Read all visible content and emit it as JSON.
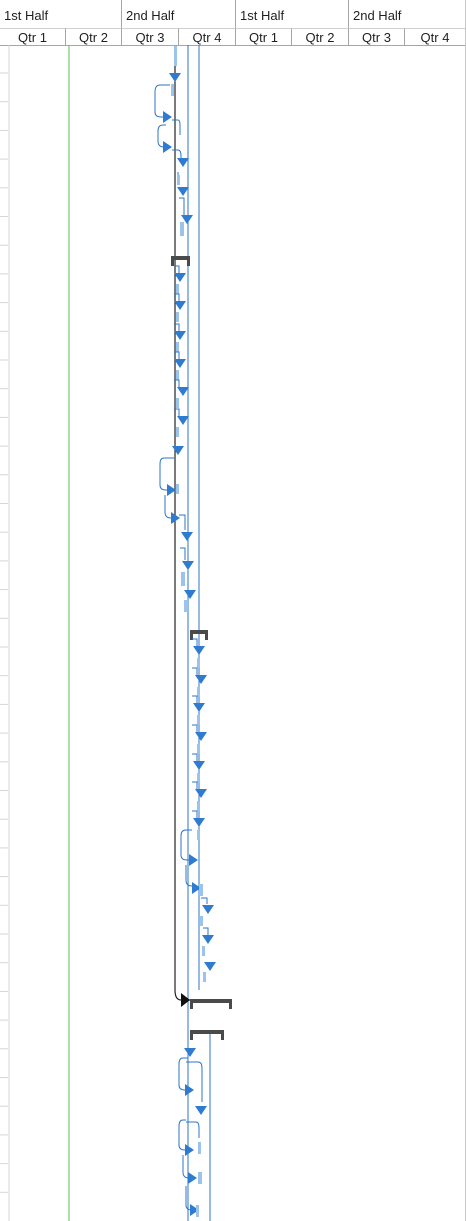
{
  "timescale": {
    "top_tier": [
      "1st Half",
      "2nd Half",
      "1st Half",
      "2nd Half"
    ],
    "bottom_tier": [
      "Qtr 1",
      "Qtr 2",
      "Qtr 3",
      "Qtr 4",
      "Qtr 1",
      "Qtr 2",
      "Qtr 3",
      "Qtr 4"
    ]
  },
  "colors": {
    "task_blue": "#2e7bcf",
    "task_light": "#9cc3ec",
    "link_line": "#2e75c7",
    "summary_bar": "#4a4a4a",
    "status_date_line": "#5bbf5b",
    "gridline": "#d6d6d6"
  },
  "icons": {
    "milestone": "blue-triangle-down",
    "summary": "black-bracket-bar"
  }
}
